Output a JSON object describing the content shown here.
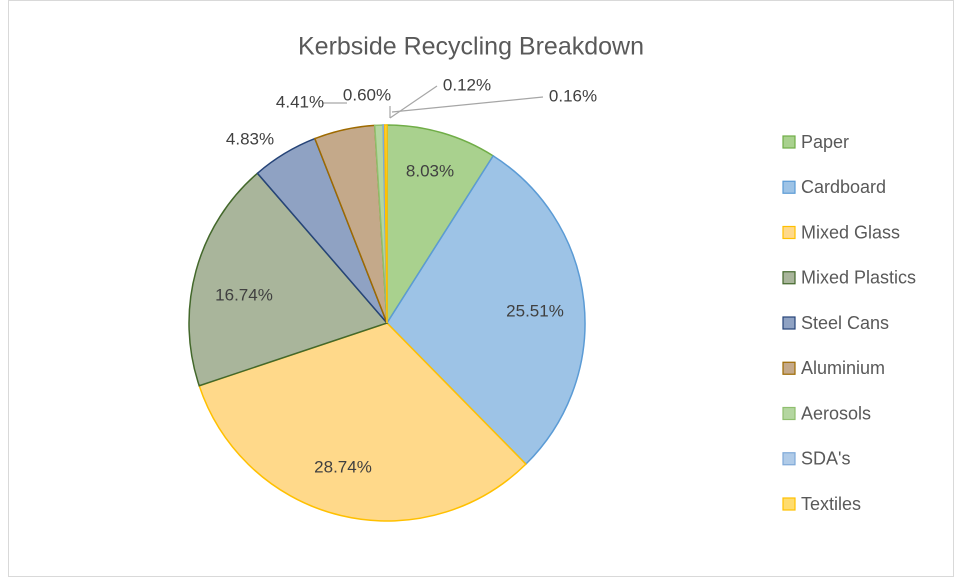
{
  "chart_data": {
    "type": "pie",
    "title": "Kerbside Recycling Breakdown",
    "categories": [
      "Paper",
      "Cardboard",
      "Mixed Glass",
      "Mixed Plastics",
      "Steel Cans",
      "Aluminium",
      "Aerosols",
      "SDA's",
      "Textiles"
    ],
    "values": [
      8.03,
      25.51,
      28.74,
      16.74,
      4.83,
      4.41,
      0.6,
      0.12,
      0.16
    ],
    "value_labels": [
      "8.03%",
      "25.51%",
      "28.74%",
      "16.74%",
      "4.83%",
      "4.41%",
      "0.60%",
      "0.12%",
      "0.16%"
    ],
    "colors": [
      "#a9d18e",
      "#9dc3e6",
      "#ffd98a",
      "#a9b59b",
      "#8fa2c3",
      "#c4a98a",
      "#b4d6a0",
      "#b0cbe8",
      "#ffdc6e"
    ],
    "legend": "right"
  }
}
